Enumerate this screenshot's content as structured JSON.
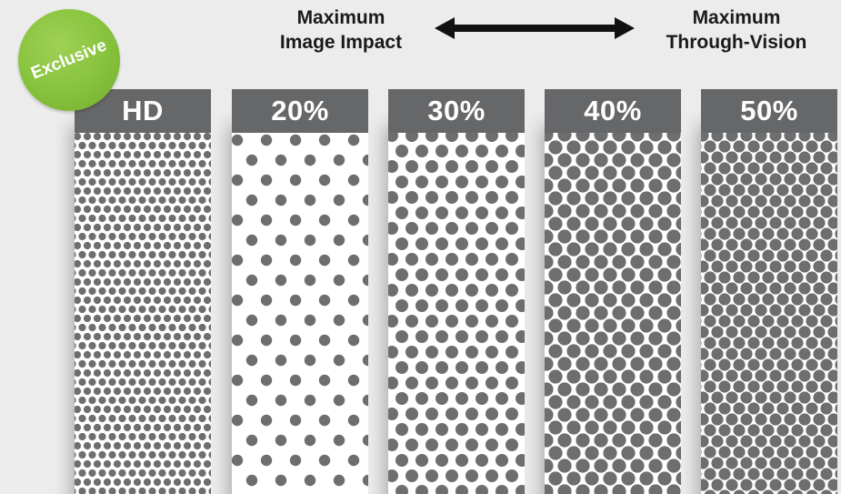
{
  "headings": {
    "left": [
      "Maximum",
      "Image Impact"
    ],
    "right": [
      "Maximum",
      "Through-Vision"
    ]
  },
  "badge": {
    "label": "Exclusive",
    "color": "#86c23c"
  },
  "colors": {
    "header": "#666769",
    "dot": "#6d6e70",
    "background": "#ececed"
  },
  "panels": [
    {
      "label": "HD"
    },
    {
      "label": "20%"
    },
    {
      "label": "30%"
    },
    {
      "label": "40%"
    },
    {
      "label": "50%"
    }
  ]
}
